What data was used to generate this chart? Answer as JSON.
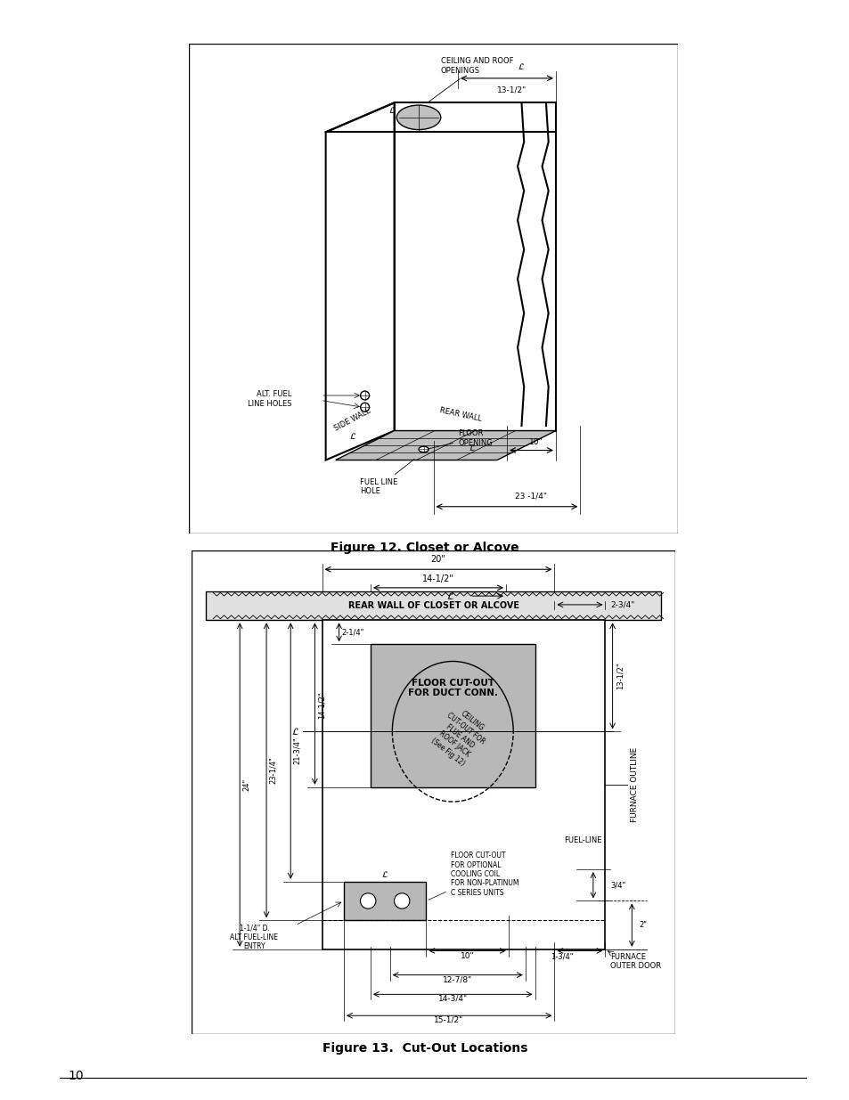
{
  "page_bg": "#ffffff",
  "fig1_caption": "Figure 12. Closet or Alcove",
  "fig2_caption": "Figure 13.  Cut-Out Locations",
  "page_number": "10",
  "fig2_labels": {
    "rear_wall": "REAR WALL OF CLOSET OR ALCOVE",
    "furnace_outline": "FURNACE OUTLINE",
    "floor_cutout": "FLOOR CUT-OUT\nFOR DUCT CONN.",
    "ceiling_cutout": "CEILING\nCUT-OUT FOR\nFLUE AND\nROOF JACK\n(See Fig 12)",
    "floor_optional": "FLOOR CUT-OUT\nFOR OPTIONAL\nCOOLING COIL\nFOR NON-PLATINUM\nC SERIES UNITS",
    "fuel_line": "FUEL-LINE",
    "furnace_outer_door": "FURNACE\nOUTER DOOR",
    "alt_fuel_line": "1-1/4\" D.\nALT FUEL-LINE\nENTRY",
    "dim_20": "20\"",
    "dim_14_5": "14-1/2\"",
    "dim_2_75": "2-3/4\"",
    "dim_2_25": "2-1/4\"",
    "dim_14_5b": "14-1/2\"",
    "dim_21_75": "21-3/4\"",
    "dim_23_25": "23-1/4\"",
    "dim_24": "24\"",
    "dim_13_5": "13-1/2\"",
    "dim_10": "10\"",
    "dim_12_875": "12-7/8\"",
    "dim_14_75": "14-3/4\"",
    "dim_15_5": "15-1/2\"",
    "dim_0_75": "3/4\"",
    "dim_2": "2\"",
    "dim_1_75": "1-3/4\""
  },
  "fig1_labels": {
    "ceiling_roof": "CEILING AND ROOF\nOPENINGS",
    "side_wall": "SIDE WALL",
    "rear_wall": "REAR WALL",
    "alt_fuel": "ALT. FUEL\nLINE HOLES",
    "floor_opening": "FLOOR\nOPENING",
    "fuel_line_hole": "FUEL LINE\nHOLE",
    "dim_13_5": "13-1/2\"",
    "dim_10": "10\"",
    "dim_23_25": "23 -1/4\""
  }
}
